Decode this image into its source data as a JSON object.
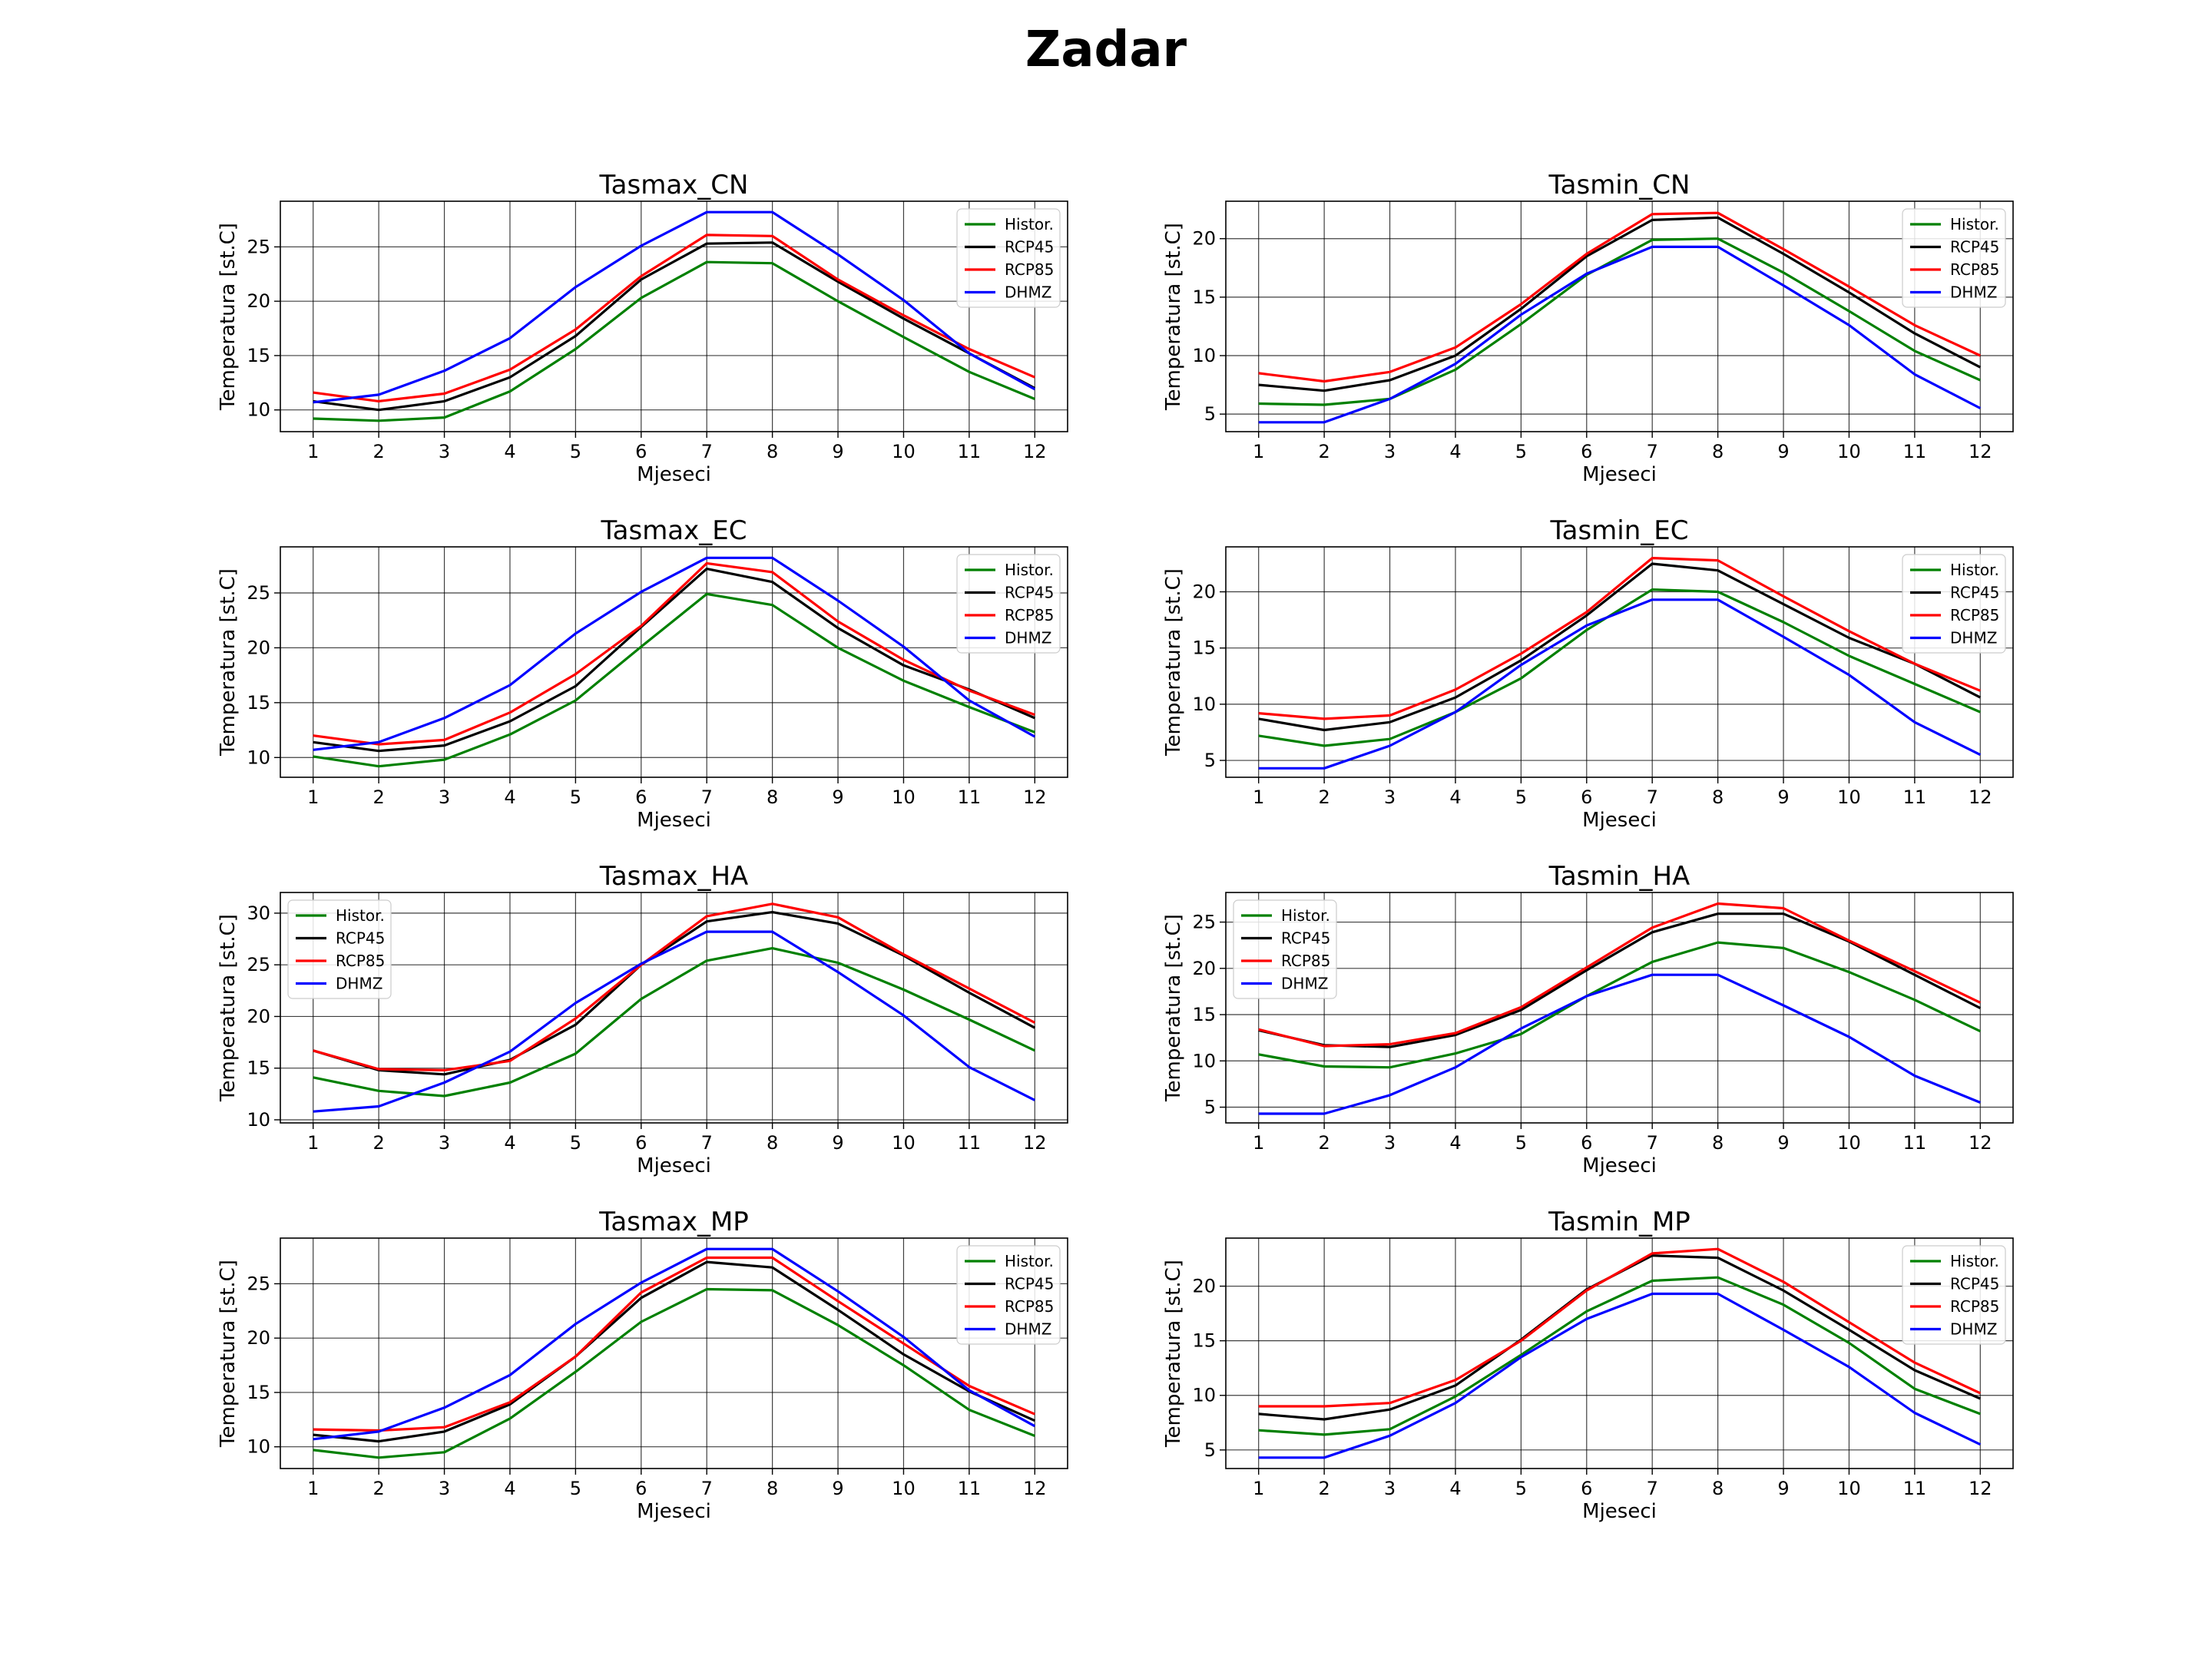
{
  "title": "Zadar",
  "colors": {
    "Histor.": "#008000",
    "RCP45": "#000000",
    "RCP85": "#ff0000",
    "DHMZ": "#0000ff",
    "grid": "#000000",
    "background": "#ffffff"
  },
  "chart_data": [
    {
      "type": "line",
      "title": "Tasmax_CN",
      "xlabel": "Mjeseci",
      "ylabel": "Temperatura [st.C]",
      "x": [
        1,
        2,
        3,
        4,
        5,
        6,
        7,
        8,
        9,
        10,
        11,
        12
      ],
      "xlim": [
        0.5,
        12.5
      ],
      "ylim": [
        8,
        29.2
      ],
      "yticks": [
        10,
        15,
        20,
        25
      ],
      "grid": true,
      "legend": "upper right",
      "series": [
        {
          "name": "Histor.",
          "values": [
            9.2,
            9.0,
            9.3,
            11.7,
            15.6,
            20.3,
            23.6,
            23.5,
            20.0,
            16.7,
            13.5,
            11.0
          ]
        },
        {
          "name": "RCP45",
          "values": [
            10.8,
            10.0,
            10.8,
            13.0,
            16.8,
            22.0,
            25.3,
            25.4,
            21.8,
            18.4,
            15.2,
            12.0
          ]
        },
        {
          "name": "RCP85",
          "values": [
            11.6,
            10.8,
            11.5,
            13.7,
            17.4,
            22.3,
            26.1,
            26.0,
            22.0,
            18.7,
            15.6,
            13.0
          ]
        },
        {
          "name": "DHMZ",
          "values": [
            10.7,
            11.4,
            13.6,
            16.6,
            21.3,
            25.1,
            28.2,
            28.2,
            24.3,
            20.1,
            15.2,
            11.9
          ]
        }
      ]
    },
    {
      "type": "line",
      "title": "Tasmin_CN",
      "xlabel": "Mjeseci",
      "ylabel": "Temperatura [st.C]",
      "x": [
        1,
        2,
        3,
        4,
        5,
        6,
        7,
        8,
        9,
        10,
        11,
        12
      ],
      "xlim": [
        0.5,
        12.5
      ],
      "ylim": [
        3.5,
        23.2
      ],
      "yticks": [
        5,
        10,
        15,
        20
      ],
      "grid": true,
      "legend": "upper right",
      "series": [
        {
          "name": "Histor.",
          "values": [
            5.9,
            5.8,
            6.3,
            8.8,
            12.7,
            16.9,
            19.9,
            20.0,
            17.1,
            13.8,
            10.4,
            7.9
          ]
        },
        {
          "name": "RCP45",
          "values": [
            7.5,
            7.0,
            7.9,
            10.0,
            14.0,
            18.5,
            21.6,
            21.8,
            18.7,
            15.4,
            11.9,
            9.0
          ]
        },
        {
          "name": "RCP85",
          "values": [
            8.5,
            7.8,
            8.6,
            10.7,
            14.4,
            18.7,
            22.1,
            22.2,
            19.1,
            15.9,
            12.6,
            10.0
          ]
        },
        {
          "name": "DHMZ",
          "values": [
            4.3,
            4.3,
            6.3,
            9.3,
            13.5,
            17.0,
            19.3,
            19.3,
            16.0,
            12.6,
            8.4,
            5.5
          ]
        }
      ]
    },
    {
      "type": "line",
      "title": "Tasmax_EC",
      "xlabel": "Mjeseci",
      "ylabel": "Temperatura [st.C]",
      "x": [
        1,
        2,
        3,
        4,
        5,
        6,
        7,
        8,
        9,
        10,
        11,
        12
      ],
      "xlim": [
        0.5,
        12.5
      ],
      "ylim": [
        8.2,
        29.2
      ],
      "yticks": [
        10,
        15,
        20,
        25
      ],
      "grid": true,
      "legend": "upper right",
      "series": [
        {
          "name": "Histor.",
          "values": [
            10.1,
            9.2,
            9.8,
            12.1,
            15.2,
            20.1,
            24.9,
            23.9,
            20.0,
            17.0,
            14.6,
            12.3
          ]
        },
        {
          "name": "RCP45",
          "values": [
            11.4,
            10.6,
            11.1,
            13.3,
            16.5,
            21.9,
            27.2,
            26.0,
            21.8,
            18.4,
            16.2,
            13.6
          ]
        },
        {
          "name": "RCP85",
          "values": [
            12.0,
            11.2,
            11.6,
            14.1,
            17.6,
            22.0,
            27.7,
            26.9,
            22.4,
            18.9,
            16.1,
            13.9
          ]
        },
        {
          "name": "DHMZ",
          "values": [
            10.7,
            11.4,
            13.6,
            16.6,
            21.3,
            25.1,
            28.2,
            28.2,
            24.3,
            20.1,
            15.2,
            11.9
          ]
        }
      ]
    },
    {
      "type": "line",
      "title": "Tasmin_EC",
      "xlabel": "Mjeseci",
      "ylabel": "Temperatura [st.C]",
      "x": [
        1,
        2,
        3,
        4,
        5,
        6,
        7,
        8,
        9,
        10,
        11,
        12
      ],
      "xlim": [
        0.5,
        12.5
      ],
      "ylim": [
        3.5,
        24
      ],
      "yticks": [
        5,
        10,
        15,
        20
      ],
      "grid": true,
      "legend": "upper right",
      "series": [
        {
          "name": "Histor.",
          "values": [
            7.2,
            6.3,
            6.9,
            9.3,
            12.3,
            16.6,
            20.2,
            20.0,
            17.3,
            14.3,
            11.8,
            9.3
          ]
        },
        {
          "name": "RCP45",
          "values": [
            8.7,
            7.7,
            8.4,
            10.6,
            13.9,
            17.9,
            22.5,
            21.9,
            18.9,
            15.9,
            13.6,
            10.6
          ]
        },
        {
          "name": "RCP85",
          "values": [
            9.2,
            8.7,
            9.0,
            11.3,
            14.5,
            18.2,
            23.0,
            22.8,
            19.6,
            16.5,
            13.6,
            11.2
          ]
        },
        {
          "name": "DHMZ",
          "values": [
            4.3,
            4.3,
            6.3,
            9.3,
            13.5,
            17.0,
            19.3,
            19.3,
            16.0,
            12.6,
            8.4,
            5.5
          ]
        }
      ]
    },
    {
      "type": "line",
      "title": "Tasmax_HA",
      "xlabel": "Mjeseci",
      "ylabel": "Temperatura [st.C]",
      "x": [
        1,
        2,
        3,
        4,
        5,
        6,
        7,
        8,
        9,
        10,
        11,
        12
      ],
      "xlim": [
        0.5,
        12.5
      ],
      "ylim": [
        9.7,
        32
      ],
      "yticks": [
        10,
        15,
        20,
        25,
        30
      ],
      "grid": true,
      "legend": "upper left",
      "series": [
        {
          "name": "Histor.",
          "values": [
            14.1,
            12.8,
            12.3,
            13.6,
            16.4,
            21.7,
            25.4,
            26.6,
            25.2,
            22.6,
            19.7,
            16.7
          ]
        },
        {
          "name": "RCP45",
          "values": [
            16.7,
            14.8,
            14.4,
            15.8,
            19.2,
            25.0,
            29.2,
            30.1,
            29.0,
            25.9,
            22.3,
            18.9
          ]
        },
        {
          "name": "RCP85",
          "values": [
            16.7,
            14.9,
            14.8,
            15.7,
            19.8,
            25.0,
            29.7,
            30.9,
            29.6,
            26.0,
            22.7,
            19.4
          ]
        },
        {
          "name": "DHMZ",
          "values": [
            10.8,
            11.3,
            13.6,
            16.6,
            21.3,
            25.1,
            28.2,
            28.2,
            24.3,
            20.1,
            15.1,
            11.9
          ]
        }
      ]
    },
    {
      "type": "line",
      "title": "Tasmin_HA",
      "xlabel": "Mjeseci",
      "ylabel": "Temperatura [st.C]",
      "x": [
        1,
        2,
        3,
        4,
        5,
        6,
        7,
        8,
        9,
        10,
        11,
        12
      ],
      "xlim": [
        0.5,
        12.5
      ],
      "ylim": [
        3.3,
        28.2
      ],
      "yticks": [
        5,
        10,
        15,
        20,
        25
      ],
      "grid": true,
      "legend": "upper left",
      "series": [
        {
          "name": "Histor.",
          "values": [
            10.7,
            9.4,
            9.3,
            10.8,
            12.9,
            17.0,
            20.7,
            22.8,
            22.2,
            19.6,
            16.6,
            13.2
          ]
        },
        {
          "name": "RCP45",
          "values": [
            13.3,
            11.7,
            11.5,
            12.8,
            15.5,
            19.8,
            23.9,
            25.9,
            25.9,
            22.9,
            19.3,
            15.7
          ]
        },
        {
          "name": "RCP85",
          "values": [
            13.4,
            11.6,
            11.8,
            13.0,
            15.8,
            20.1,
            24.4,
            27.0,
            26.5,
            23.0,
            19.7,
            16.3
          ]
        },
        {
          "name": "DHMZ",
          "values": [
            4.3,
            4.3,
            6.3,
            9.3,
            13.5,
            17.0,
            19.3,
            19.3,
            16.0,
            12.6,
            8.4,
            5.5
          ]
        }
      ]
    },
    {
      "type": "line",
      "title": "Tasmax_MP",
      "xlabel": "Mjeseci",
      "ylabel": "Temperatura [st.C]",
      "x": [
        1,
        2,
        3,
        4,
        5,
        6,
        7,
        8,
        9,
        10,
        11,
        12
      ],
      "xlim": [
        0.5,
        12.5
      ],
      "ylim": [
        8,
        29.2
      ],
      "yticks": [
        10,
        15,
        20,
        25
      ],
      "grid": true,
      "legend": "upper right",
      "series": [
        {
          "name": "Histor.",
          "values": [
            9.7,
            9.0,
            9.5,
            12.6,
            16.9,
            21.5,
            24.5,
            24.4,
            21.2,
            17.5,
            13.4,
            11.0
          ]
        },
        {
          "name": "RCP45",
          "values": [
            11.1,
            10.5,
            11.4,
            13.9,
            18.3,
            23.7,
            27.0,
            26.5,
            22.6,
            18.5,
            15.1,
            12.4
          ]
        },
        {
          "name": "RCP85",
          "values": [
            11.6,
            11.5,
            11.8,
            14.1,
            18.3,
            24.2,
            27.4,
            27.4,
            23.4,
            19.5,
            15.6,
            13.0
          ]
        },
        {
          "name": "DHMZ",
          "values": [
            10.7,
            11.4,
            13.6,
            16.6,
            21.3,
            25.1,
            28.2,
            28.2,
            24.3,
            20.1,
            15.2,
            11.9
          ]
        }
      ]
    },
    {
      "type": "line",
      "title": "Tasmin_MP",
      "xlabel": "Mjeseci",
      "ylabel": "Temperatura [st.C]",
      "x": [
        1,
        2,
        3,
        4,
        5,
        6,
        7,
        8,
        9,
        10,
        11,
        12
      ],
      "xlim": [
        0.5,
        12.5
      ],
      "ylim": [
        3.3,
        24.4
      ],
      "yticks": [
        5,
        10,
        15,
        20
      ],
      "grid": true,
      "legend": "upper right",
      "series": [
        {
          "name": "Histor.",
          "values": [
            6.8,
            6.4,
            6.9,
            9.9,
            13.7,
            17.7,
            20.5,
            20.8,
            18.3,
            14.8,
            10.6,
            8.3
          ]
        },
        {
          "name": "RCP45",
          "values": [
            8.3,
            7.8,
            8.7,
            10.9,
            15.1,
            19.7,
            22.8,
            22.6,
            19.6,
            16.0,
            12.3,
            9.7
          ]
        },
        {
          "name": "RCP85",
          "values": [
            9.0,
            9.0,
            9.3,
            11.4,
            15.0,
            19.6,
            23.0,
            23.4,
            20.4,
            16.7,
            13.0,
            10.2
          ]
        },
        {
          "name": "DHMZ",
          "values": [
            4.3,
            4.3,
            6.3,
            9.3,
            13.5,
            17.0,
            19.3,
            19.3,
            16.0,
            12.6,
            8.4,
            5.5
          ]
        }
      ]
    }
  ]
}
